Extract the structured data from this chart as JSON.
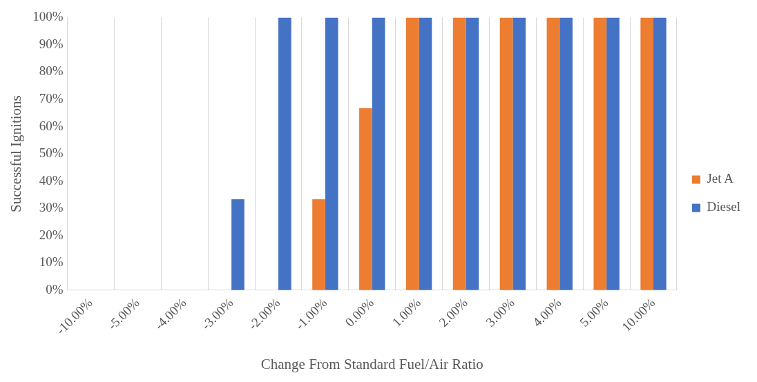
{
  "chart_data": {
    "type": "bar",
    "xlabel": "Change From Standard Fuel/Air Ratio",
    "ylabel": "Successful Ignitions",
    "categories": [
      "-10.00%",
      "-5.00%",
      "-4.00%",
      "-3.00%",
      "-2.00%",
      "-1.00%",
      "0.00%",
      "1.00%",
      "2.00%",
      "3.00%",
      "4.00%",
      "5.00%",
      "10.00%"
    ],
    "series": [
      {
        "name": "Jet A",
        "color": "#ed7d31",
        "values": [
          0,
          0,
          0,
          0,
          0,
          33.3,
          66.7,
          100,
          100,
          100,
          100,
          100,
          100
        ]
      },
      {
        "name": "Diesel",
        "color": "#4472c4",
        "values": [
          0,
          0,
          0,
          33.3,
          100,
          100,
          100,
          100,
          100,
          100,
          100,
          100,
          100
        ]
      }
    ],
    "ylim": [
      0,
      100
    ],
    "yticks": [
      {
        "value": 0,
        "label": "0%"
      },
      {
        "value": 10,
        "label": "10%"
      },
      {
        "value": 20,
        "label": "20%"
      },
      {
        "value": 30,
        "label": "30%"
      },
      {
        "value": 40,
        "label": "40%"
      },
      {
        "value": 50,
        "label": "50%"
      },
      {
        "value": 60,
        "label": "60%"
      },
      {
        "value": 70,
        "label": "70%"
      },
      {
        "value": 80,
        "label": "80%"
      },
      {
        "value": 90,
        "label": "90%"
      },
      {
        "value": 100,
        "label": "100%"
      }
    ],
    "grid": "x",
    "legend": "right"
  }
}
